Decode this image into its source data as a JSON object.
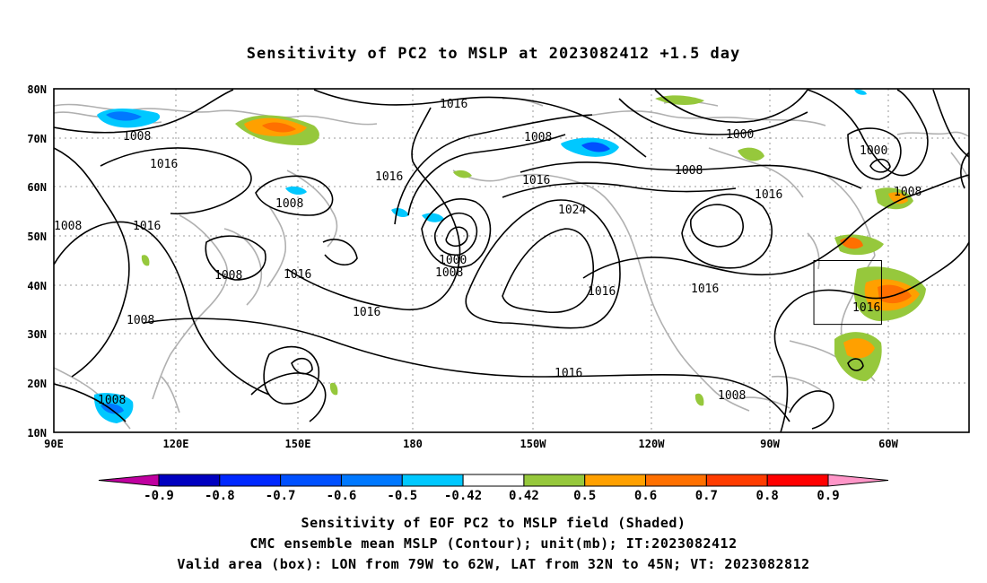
{
  "title": "Sensitivity of PC2 to MSLP at 2023082412 +1.5 day",
  "map": {
    "lat_labels": [
      "80N",
      "70N",
      "60N",
      "50N",
      "40N",
      "30N",
      "20N",
      "10N"
    ],
    "lon_labels": [
      "90E",
      "120E",
      "150E",
      "180",
      "150W",
      "120W",
      "90W",
      "60W"
    ],
    "contour_labels": [
      "1016",
      "1008",
      "1008",
      "1016",
      "1008",
      "1016",
      "1016",
      "1016",
      "1008",
      "1016",
      "1000",
      "1008",
      "1016",
      "1008",
      "1016",
      "1024",
      "1000",
      "1008",
      "1000",
      "1016",
      "1008",
      "1016",
      "1016",
      "1016",
      "1008",
      "1008",
      "1016",
      "1008"
    ],
    "valid_box": {
      "lon_min": -79,
      "lon_max": -62,
      "lat_min": 32,
      "lat_max": 45
    }
  },
  "colorbar": {
    "labels": [
      "-0.9",
      "-0.8",
      "-0.7",
      "-0.6",
      "-0.5",
      "-0.42",
      "0.42",
      "0.5",
      "0.6",
      "0.7",
      "0.8",
      "0.9"
    ],
    "colors": [
      "#c000a0",
      "#0000c0",
      "#0028ff",
      "#0050ff",
      "#0078ff",
      "#00c8ff",
      "#ffffff",
      "#96c83c",
      "#ffa000",
      "#ff7000",
      "#ff3c00",
      "#ff0000",
      "#ff96c8"
    ]
  },
  "captions": [
    "Sensitivity of EOF PC2 to MSLP field (Shaded)",
    "CMC ensemble mean MSLP (Contour); unit(mb); IT:2023082412",
    "Valid area (box): LON from 79W to 62W, LAT from 32N to 45N; VT: 2023082812"
  ]
}
